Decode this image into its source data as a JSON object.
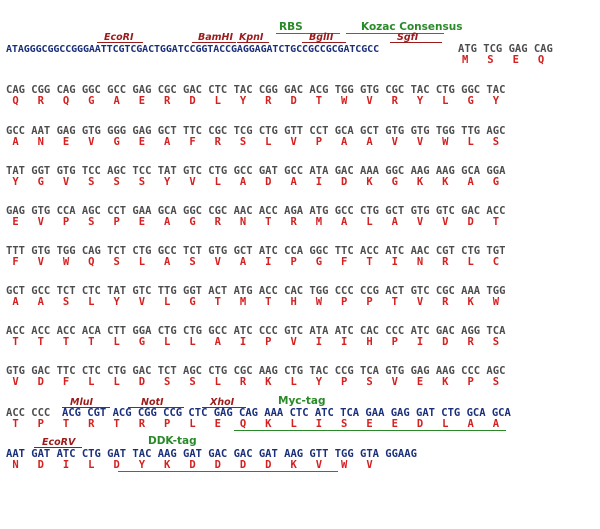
{
  "header": {
    "labels_green": {
      "rbs": "RBS",
      "kozac": "Kozac Consensus"
    },
    "sites": {
      "ecori": "EcoRI",
      "bamhi": "BamHI",
      "kpni": "KpnI",
      "bglii": "BglII",
      "sgfi": "SgfI"
    },
    "seq": "ATAGGGCGGCCGGGAATTCGTCGACTGGATCCGGTACCGAGGAGATCTGCCGCCGCGATCGCC",
    "codons": "ATG TCG GAG CAG",
    "aas": "M   S   E   Q"
  },
  "rows": [
    {
      "dna": "CAG CGG CAG GGC GCC GAG CGC GAC CTC TAC CGG GAC ACG TGG GTG CGC TAC CTG GGC TAC",
      "aa": " Q   R   Q   G   A   E   R   D   L   Y   R   D   T   W   V   R   Y   L   G   Y"
    },
    {
      "dna": "GCC AAT GAG GTG GGG GAG GCT TTC CGC TCG CTG GTT CCT GCA GCT GTG GTG TGG TTG AGC",
      "aa": " A   N   E   V   G   E   A   F   R   S   L   V   P   A   A   V   V   W   L   S"
    },
    {
      "dna": "TAT GGT GTG TCC AGC TCC TAT GTC CTG GCC GAT GCC ATA GAC AAA GGC AAG AAG GCA GGA",
      "aa": " Y   G   V   S   S   S   Y   V   L   A   D   A   I   D   K   G   K   K   A   G"
    },
    {
      "dna": "GAG GTG CCA AGC CCT GAA GCA GGC CGC AAC ACC AGA ATG GCC CTG GCT GTG GTC GAC ACC",
      "aa": " E   V   P   S   P   E   A   G   R   N   T   R   M   A   L   A   V   V   D   T"
    },
    {
      "dna": "TTT GTG TGG CAG TCT CTG GCC TCT GTG GCT ATC CCA GGC TTC ACC ATC AAC CGT CTG TGT",
      "aa": " F   V   W   Q   S   L   A   S   V   A   I   P   G   F   T   I   N   R   L   C"
    },
    {
      "dna": "GCT GCC TCT CTC TAT GTC TTG GGT ACT ATG ACC CAC TGG CCC CCG ACT GTC CGC AAA TGG",
      "aa": " A   A   S   L   Y   V   L   G   T   M   T   H   W   P   P   T   V   R   K   W"
    },
    {
      "dna": "ACC ACC ACC ACA CTT GGA CTG CTG GCC ATC CCC GTC ATA ATC CAC CCC ATC GAC AGG TCA",
      "aa": " T   T   T   T   L   G   L   L   A   I   P   V   I   I   H   P   I   D   R   S"
    },
    {
      "dna": "GTG GAC TTC CTC CTG GAC TCT AGC CTG CGC AAG CTG TAC CCG TCA GTG GAG AAG CCC AGC",
      "aa": " V   D   F   L   L   D   S   S   L   R   K   L   Y   P   S   V   E   K   P   S"
    }
  ],
  "row10": {
    "dna_a": "ACC CCC ",
    "dna_b": "ACG CGT ACG CGG CCG CTC GAG CAG AAA CTC ATC TCA GAA GAG GAT CTG GCA GCA",
    "aa": " T   P   T   R   T   R   P   L   E   Q   K   L   I   S   E   E   D   L   A   A",
    "mlui": "MluI",
    "noti": "NotI",
    "xhoi": "XhoI",
    "myc": "Myc-tag"
  },
  "row11": {
    "dna": "AAT GAT ATC CTG GAT TAC AAG GAT GAC GAC GAT AAG GTT TGG GTA GGAAG",
    "aa": " N   D   I   L   D   Y   K   D   D   D   D   K   V   W   V",
    "ecorv": "EcoRV",
    "ddk": "DDK-tag"
  }
}
